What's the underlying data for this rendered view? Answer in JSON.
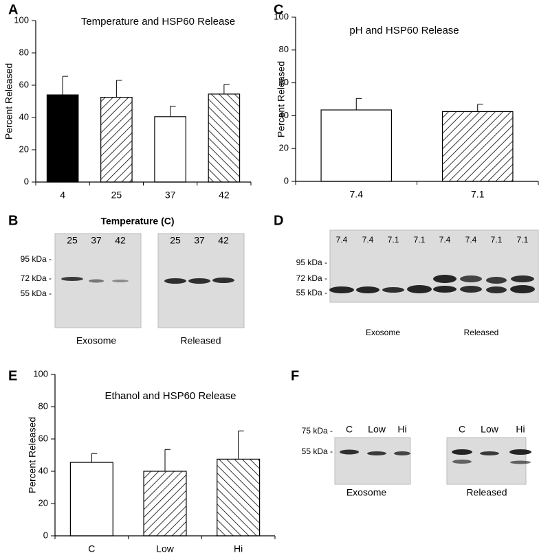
{
  "chart_data": [
    {
      "type": "bar",
      "letter": "A",
      "title": "Temperature and HSP60 Release",
      "ylabel": "Percent Released",
      "categories": [
        "4",
        "25",
        "37",
        "42"
      ],
      "values": [
        54,
        52.5,
        40.5,
        54.5
      ],
      "errors": [
        11.5,
        10.5,
        6.5,
        6
      ],
      "patterns": [
        "solid",
        "hatch-right",
        "none",
        "hatch-left"
      ],
      "ylim": [
        0,
        100
      ],
      "yticks": [
        0,
        20,
        40,
        60,
        80,
        100
      ]
    },
    {
      "type": "bar",
      "letter": "C",
      "title": "pH and HSP60 Release",
      "ylabel": "Percent Released",
      "categories": [
        "7.4",
        "7.1"
      ],
      "values": [
        43.5,
        42.5
      ],
      "errors": [
        7,
        4.5
      ],
      "patterns": [
        "none",
        "hatch-right"
      ],
      "ylim": [
        0,
        100
      ],
      "yticks": [
        0,
        20,
        40,
        60,
        80,
        100
      ]
    },
    {
      "type": "bar",
      "letter": "E",
      "title": "Ethanol and HSP60 Release",
      "ylabel": "Percent Released",
      "categories": [
        "C",
        "Low",
        "Hi"
      ],
      "values": [
        45.5,
        40,
        47.5
      ],
      "errors": [
        5.5,
        13.5,
        17.5
      ],
      "patterns": [
        "none",
        "hatch-right",
        "hatch-left"
      ],
      "ylim": [
        0,
        100
      ],
      "yticks": [
        0,
        20,
        40,
        60,
        80,
        100
      ]
    }
  ],
  "blots": [
    {
      "letter": "B",
      "title": "Temperature (C)",
      "lanes": [
        "25",
        "37",
        "42",
        "25",
        "37",
        "42"
      ],
      "markers": [
        "95 kDa -",
        "72 kDa -",
        "55 kDa -"
      ],
      "captions": [
        "Exosome",
        "Released"
      ]
    },
    {
      "letter": "D",
      "lanes": [
        "7.4",
        "7.4",
        "7.1",
        "7.1",
        "7.4",
        "7.4",
        "7.1",
        "7.1"
      ],
      "markers": [
        "95 kDa -",
        "72 kDa -",
        "55 kDa -"
      ],
      "captions": [
        "Exosome",
        "Released"
      ]
    },
    {
      "letter": "F",
      "lanes": [
        "C",
        "Low",
        "Hi",
        "C",
        "Low",
        "Hi"
      ],
      "markers": [
        "75 kDa -",
        "55 kDa -"
      ],
      "captions": [
        "Exosome",
        "Released"
      ]
    }
  ]
}
